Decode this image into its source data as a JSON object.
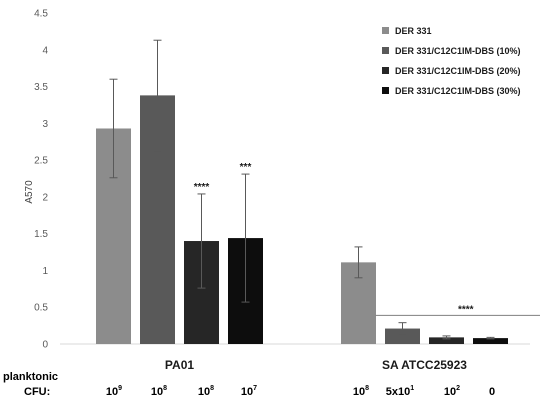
{
  "chart_data": {
    "type": "bar",
    "ylabel": "A570",
    "ylim": [
      0,
      4.5
    ],
    "yticks": [
      "0",
      "0.5",
      "1",
      "1.5",
      "2",
      "2.5",
      "3",
      "3.5",
      "4",
      "4.5"
    ],
    "ytick_values": [
      0,
      0.5,
      1,
      1.5,
      2,
      2.5,
      3,
      3.5,
      4,
      4.5
    ],
    "grid": false,
    "legend_position": "top-right",
    "groups": [
      "PA01",
      "SA ATCC25923"
    ],
    "series": [
      {
        "name": "DER 331",
        "color": "#8c8c8c",
        "values": [
          2.93,
          1.11
        ],
        "errors": [
          0.67,
          0.21
        ]
      },
      {
        "name": "DER 331/C12C1IM-DBS (10%)",
        "color": "#595959",
        "values": [
          3.38,
          0.21
        ],
        "errors": [
          0.75,
          0.08
        ]
      },
      {
        "name": "DER 331/C12C1IM-DBS (20%)",
        "color": "#262626",
        "values": [
          1.4,
          0.09
        ],
        "errors": [
          0.64,
          0.02
        ]
      },
      {
        "name": "DER 331/C12C1IM-DBS (30%)",
        "color": "#0d0d0d",
        "values": [
          1.44,
          0.08
        ],
        "errors": [
          0.87,
          0.01
        ]
      }
    ],
    "annotations": [
      {
        "text": "****",
        "group": 0,
        "series": 2
      },
      {
        "text": "***",
        "group": 0,
        "series": 3
      },
      {
        "text": "****",
        "group": 1,
        "bracket": true,
        "y": 0.39
      }
    ],
    "row_labels": [
      "planktonic",
      "CFU:"
    ],
    "cfu_labels": [
      {
        "base": "10",
        "sup": "9"
      },
      {
        "base": "10",
        "sup": "8"
      },
      {
        "base": "10",
        "sup": "8"
      },
      {
        "base": "10",
        "sup": "7"
      },
      {
        "base": "10",
        "sup": "8"
      },
      {
        "base": "5x10",
        "sup": "1"
      },
      {
        "base": "10",
        "sup": "2"
      },
      {
        "base": "0",
        "sup": ""
      }
    ]
  }
}
